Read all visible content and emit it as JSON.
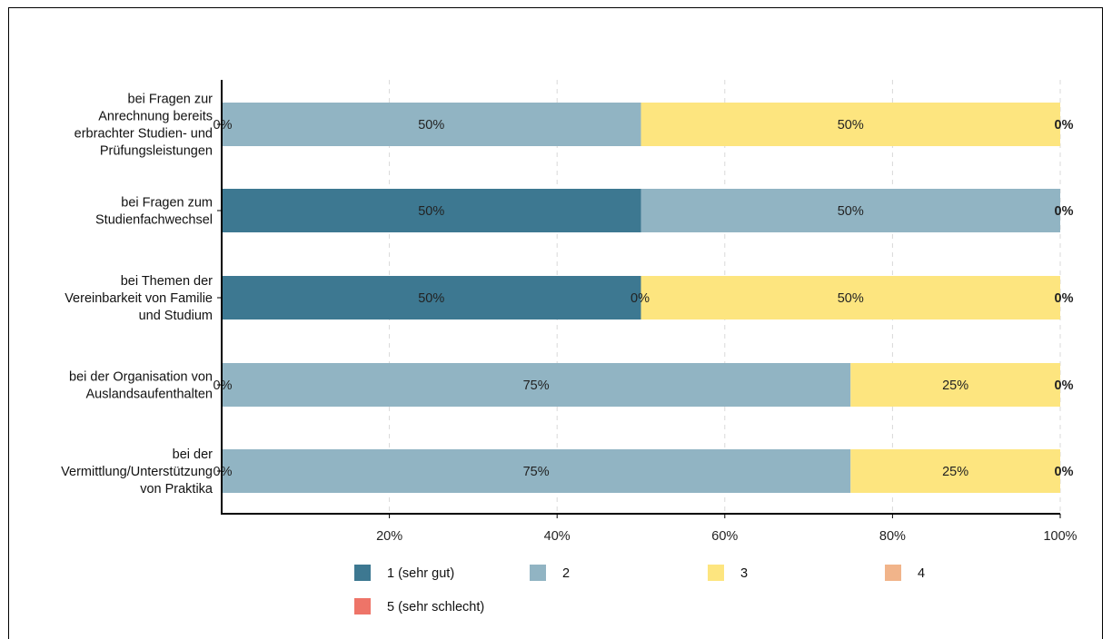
{
  "chart_data": {
    "type": "bar",
    "orientation": "horizontal",
    "stacked": true,
    "percent": true,
    "categories": [
      "bei Fragen zur Anrechnung bereits erbrachter Studien- und Prüfungsleistungen",
      "bei Fragen zum Studienfachwechsel",
      "bei Themen der Vereinbarkeit von Familie und Studium",
      "bei der Organisation von Auslandsaufenthalten",
      "bei der Vermittlung/Unterstützung von Praktika"
    ],
    "category_lines": [
      [
        "bei Fragen zur",
        "Anrechnung bereits",
        "erbrachter Studien- und",
        "Prüfungsleistungen"
      ],
      [
        "bei Fragen zum",
        "Studienfachwechsel"
      ],
      [
        "bei Themen der",
        "Vereinbarkeit von Familie",
        "und Studium"
      ],
      [
        "bei der Organisation von",
        "Auslandsaufenthalten"
      ],
      [
        "bei der",
        "Vermittlung/Unterstützung",
        "von Praktika"
      ]
    ],
    "series": [
      {
        "name": "1 (sehr gut)",
        "color": "#3d7891",
        "values": [
          0,
          50,
          50,
          0,
          0
        ]
      },
      {
        "name": "2",
        "color": "#91b4c3",
        "values": [
          50,
          50,
          0,
          75,
          75
        ]
      },
      {
        "name": "3",
        "color": "#fde57f",
        "values": [
          50,
          0,
          50,
          25,
          25
        ]
      },
      {
        "name": "4",
        "color": "#f1b48a",
        "values": [
          0,
          0,
          0,
          0,
          0
        ]
      },
      {
        "name": "5 (sehr schlecht)",
        "color": "#ee7468",
        "values": [
          0,
          0,
          0,
          0,
          0
        ]
      }
    ],
    "data_labels": [
      [
        "0%",
        "50%",
        "50%",
        "0%"
      ],
      [
        "50%",
        "50%",
        "0%"
      ],
      [
        "50%",
        "0%",
        "50%",
        "0%"
      ],
      [
        "0%",
        "75%",
        "25%",
        "0%"
      ],
      [
        "0%",
        "75%",
        "25%",
        "0%"
      ]
    ],
    "xlim": [
      0,
      100
    ],
    "xticks": [
      "20%",
      "40%",
      "60%",
      "80%",
      "100%"
    ],
    "xtick_values": [
      20,
      40,
      60,
      80,
      100
    ],
    "grid": "vertical dashed",
    "legend_position": "bottom",
    "title": "",
    "xlabel": "",
    "ylabel": ""
  }
}
